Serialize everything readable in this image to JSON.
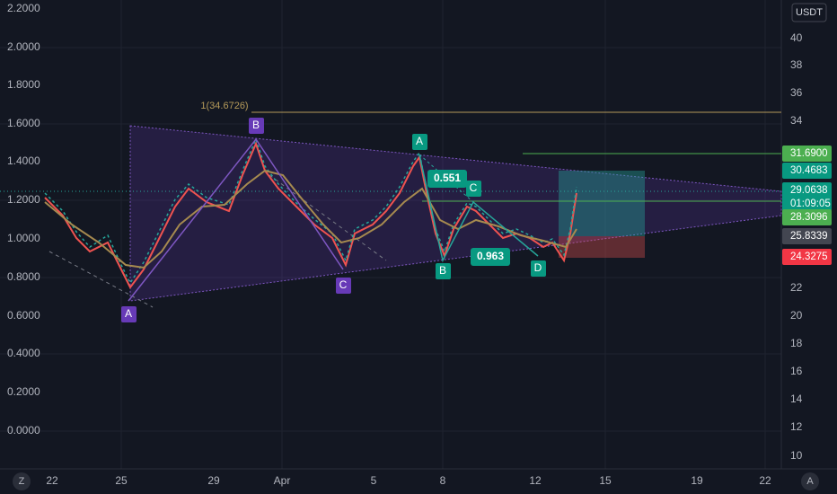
{
  "toolbar": {
    "currency": "USDT"
  },
  "left_axis": {
    "labels": [
      "2.2000",
      "2.0000",
      "1.8000",
      "1.6000",
      "1.4000",
      "1.2000",
      "1.0000",
      "0.8000",
      "0.6000",
      "0.4000",
      "0.2000",
      "0.0000"
    ]
  },
  "right_axis": {
    "labels": [
      "40",
      "38",
      "36",
      "34",
      "22",
      "20",
      "18",
      "16",
      "14",
      "12",
      "10"
    ]
  },
  "price_tags": [
    {
      "label": "31.6900"
    },
    {
      "label": "30.4683"
    },
    {
      "label": "29.0638"
    },
    {
      "label": "28.3096"
    },
    {
      "label": "25.8339"
    },
    {
      "label": "24.3275"
    }
  ],
  "countdown": "01:09:05",
  "time_axis": {
    "labels": [
      "22",
      "25",
      "29",
      "Apr",
      "5",
      "8",
      "12",
      "15",
      "19",
      "22"
    ]
  },
  "fib_label": "1(34.6726)",
  "pattern_1": {
    "points": [
      "A",
      "B",
      "C"
    ]
  },
  "pattern_2": {
    "points": [
      "A",
      "B",
      "C",
      "D"
    ],
    "ratios": [
      "0.551",
      "0.963"
    ]
  },
  "buttons": {
    "left": "Z",
    "right": "A"
  }
}
